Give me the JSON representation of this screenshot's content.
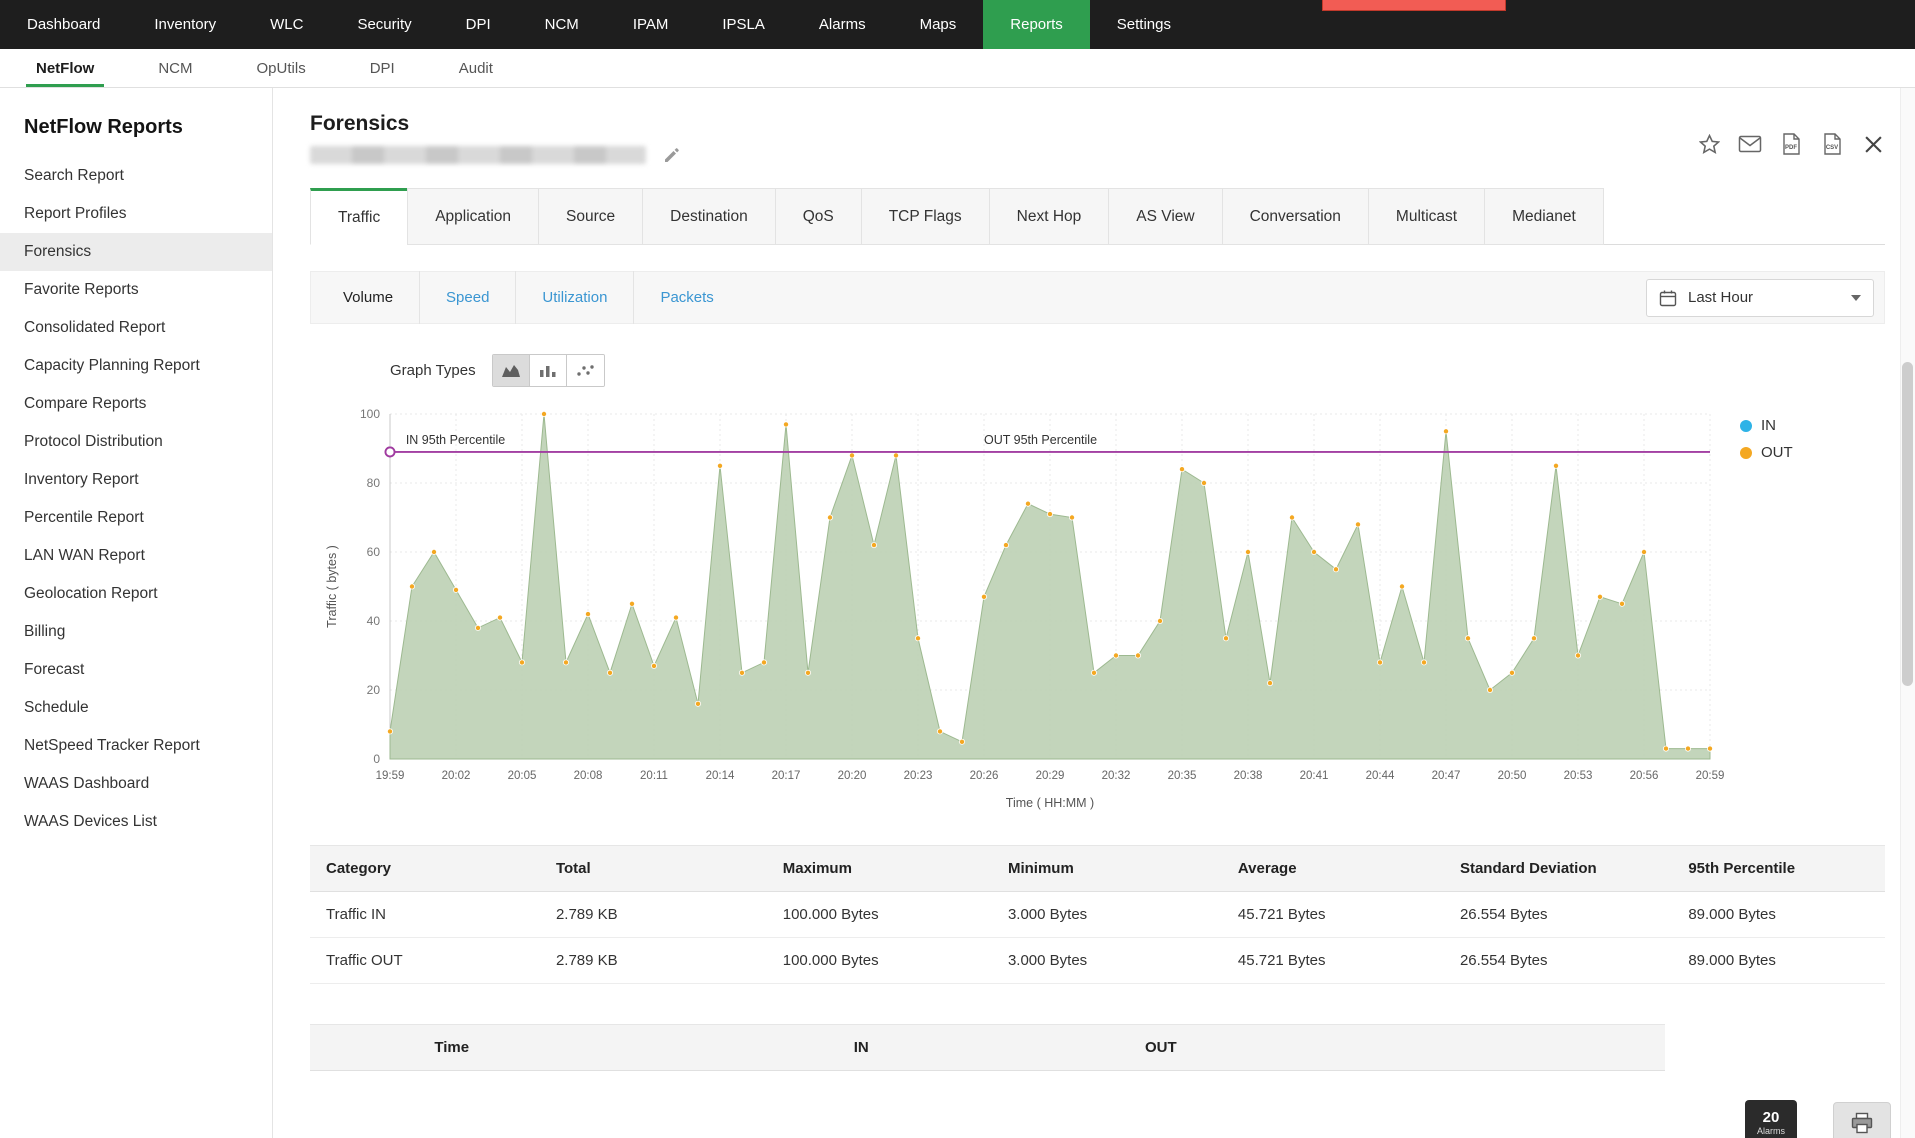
{
  "top_nav": {
    "items": [
      {
        "label": "Dashboard"
      },
      {
        "label": "Inventory"
      },
      {
        "label": "WLC"
      },
      {
        "label": "Security"
      },
      {
        "label": "DPI"
      },
      {
        "label": "NCM"
      },
      {
        "label": "IPAM"
      },
      {
        "label": "IPSLA"
      },
      {
        "label": "Alarms"
      },
      {
        "label": "Maps"
      },
      {
        "label": "Reports",
        "active": true
      },
      {
        "label": "Settings"
      }
    ]
  },
  "module_tabs": {
    "items": [
      {
        "label": "NetFlow",
        "active": true
      },
      {
        "label": "NCM"
      },
      {
        "label": "OpUtils"
      },
      {
        "label": "DPI"
      },
      {
        "label": "Audit"
      }
    ]
  },
  "sidebar": {
    "title": "NetFlow Reports",
    "items": [
      {
        "label": "Search Report"
      },
      {
        "label": "Report Profiles"
      },
      {
        "label": "Forensics",
        "active": true
      },
      {
        "label": "Favorite Reports"
      },
      {
        "label": "Consolidated Report"
      },
      {
        "label": "Capacity Planning Report"
      },
      {
        "label": "Compare Reports"
      },
      {
        "label": "Protocol Distribution"
      },
      {
        "label": "Inventory Report"
      },
      {
        "label": "Percentile Report"
      },
      {
        "label": "LAN WAN Report"
      },
      {
        "label": "Geolocation Report"
      },
      {
        "label": "Billing"
      },
      {
        "label": "Forecast"
      },
      {
        "label": "Schedule"
      },
      {
        "label": "NetSpeed Tracker Report"
      },
      {
        "label": "WAAS Dashboard"
      },
      {
        "label": "WAAS Devices List"
      }
    ]
  },
  "page": {
    "title": "Forensics"
  },
  "export_icons": {
    "pdf": "PDF",
    "csv": "CSV"
  },
  "report_tabs": {
    "items": [
      {
        "label": "Traffic",
        "active": true
      },
      {
        "label": "Application"
      },
      {
        "label": "Source"
      },
      {
        "label": "Destination"
      },
      {
        "label": "QoS"
      },
      {
        "label": "TCP Flags"
      },
      {
        "label": "Next Hop"
      },
      {
        "label": "AS View"
      },
      {
        "label": "Conversation"
      },
      {
        "label": "Multicast"
      },
      {
        "label": "Medianet"
      }
    ]
  },
  "metric_tabs": {
    "items": [
      {
        "label": "Volume",
        "active": true
      },
      {
        "label": "Speed"
      },
      {
        "label": "Utilization"
      },
      {
        "label": "Packets"
      }
    ]
  },
  "time_range": {
    "selected": "Last Hour"
  },
  "labels": {
    "graph_types": "Graph Types"
  },
  "chart_data": {
    "type": "area",
    "xlabel": "Time ( HH:MM )",
    "ylabel": "Traffic ( bytes )",
    "ylim": [
      0,
      100
    ],
    "y_ticks": [
      0,
      20,
      40,
      60,
      80,
      100
    ],
    "x_tick_labels": [
      "19:59",
      "20:02",
      "20:05",
      "20:08",
      "20:11",
      "20:14",
      "20:17",
      "20:20",
      "20:23",
      "20:26",
      "20:29",
      "20:32",
      "20:35",
      "20:38",
      "20:41",
      "20:44",
      "20:47",
      "20:50",
      "20:53",
      "20:56",
      "20:59"
    ],
    "x_times": [
      "19:59",
      "20:00",
      "20:01",
      "20:02",
      "20:03",
      "20:04",
      "20:05",
      "20:06",
      "20:07",
      "20:08",
      "20:09",
      "20:10",
      "20:11",
      "20:12",
      "20:13",
      "20:14",
      "20:15",
      "20:16",
      "20:17",
      "20:18",
      "20:19",
      "20:20",
      "20:21",
      "20:22",
      "20:23",
      "20:24",
      "20:25",
      "20:26",
      "20:27",
      "20:28",
      "20:29",
      "20:30",
      "20:31",
      "20:32",
      "20:33",
      "20:34",
      "20:35",
      "20:36",
      "20:37",
      "20:38",
      "20:39",
      "20:40",
      "20:41",
      "20:42",
      "20:43",
      "20:44",
      "20:45",
      "20:46",
      "20:47",
      "20:48",
      "20:49",
      "20:50",
      "20:51",
      "20:52",
      "20:53",
      "20:54",
      "20:55",
      "20:56",
      "20:57",
      "20:58",
      "20:59"
    ],
    "series": [
      {
        "name": "IN",
        "values": [
          8,
          50,
          60,
          49,
          38,
          41,
          28,
          100,
          28,
          42,
          25,
          45,
          27,
          41,
          16,
          85,
          25,
          28,
          97,
          25,
          70,
          88,
          62,
          88,
          35,
          8,
          5,
          47,
          62,
          74,
          71,
          70,
          25,
          30,
          30,
          40,
          84,
          80,
          35,
          60,
          22,
          70,
          60,
          55,
          68,
          28,
          50,
          28,
          95,
          35,
          20,
          25,
          35,
          85,
          30,
          47,
          45,
          60,
          3,
          3,
          3
        ]
      },
      {
        "name": "OUT",
        "values": [
          8,
          50,
          60,
          49,
          38,
          41,
          28,
          100,
          28,
          42,
          25,
          45,
          27,
          41,
          16,
          85,
          25,
          28,
          97,
          25,
          70,
          88,
          62,
          88,
          35,
          8,
          5,
          47,
          62,
          74,
          71,
          70,
          25,
          30,
          30,
          40,
          84,
          80,
          35,
          60,
          22,
          70,
          60,
          55,
          68,
          28,
          50,
          28,
          95,
          35,
          20,
          25,
          35,
          85,
          30,
          47,
          45,
          60,
          3,
          3,
          3
        ]
      }
    ],
    "percentile_lines": [
      {
        "label": "IN 95th Percentile",
        "value": 89,
        "label_x": 0.012
      },
      {
        "label": "OUT 95th Percentile",
        "value": 89,
        "label_x": 0.45
      }
    ],
    "legend": [
      {
        "name": "IN",
        "color": "#2eb3e7"
      },
      {
        "name": "OUT",
        "color": "#f4a822"
      }
    ],
    "area_color": "#bcd0b4",
    "line_color": "#9db990",
    "marker_color": "#f4a822",
    "percentile_color": "#a03ba0",
    "grid_color": "#e9e9e9",
    "legend_position": "right",
    "grid": true
  },
  "summary_table": {
    "headers": [
      "Category",
      "Total",
      "Maximum",
      "Minimum",
      "Average",
      "Standard Deviation",
      "95th Percentile"
    ],
    "rows": [
      [
        "Traffic IN",
        "2.789 KB",
        "100.000 Bytes",
        "3.000 Bytes",
        "45.721 Bytes",
        "26.554 Bytes",
        "89.000 Bytes"
      ],
      [
        "Traffic OUT",
        "2.789 KB",
        "100.000 Bytes",
        "3.000 Bytes",
        "45.721 Bytes",
        "26.554 Bytes",
        "89.000 Bytes"
      ]
    ]
  },
  "detail_table": {
    "headers": [
      "Time",
      "IN",
      "OUT"
    ]
  },
  "alarms": {
    "count": "20",
    "label": "Alarms"
  }
}
